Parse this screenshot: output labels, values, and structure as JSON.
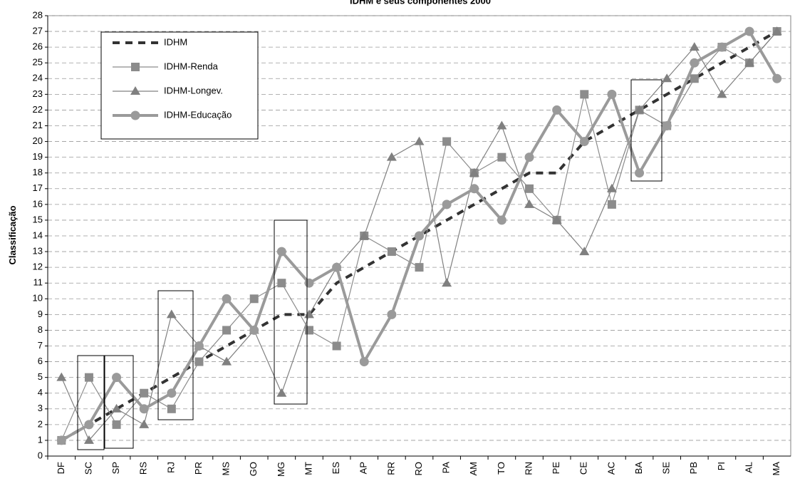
{
  "chart_data": {
    "type": "line",
    "title": "IDHM e seus componentes 2000",
    "y_label": "Classificação",
    "categories": [
      "DF",
      "SC",
      "SP",
      "RS",
      "RJ",
      "PR",
      "MS",
      "GO",
      "MG",
      "MT",
      "ES",
      "AP",
      "RR",
      "RO",
      "PA",
      "AM",
      "TO",
      "RN",
      "PE",
      "CE",
      "AC",
      "BA",
      "SE",
      "PB",
      "PI",
      "AL",
      "MA"
    ],
    "series": [
      {
        "name": "IDHM",
        "color": "#333333",
        "marker": "none",
        "dash": true,
        "values": [
          1,
          2,
          3,
          4,
          5,
          6,
          7,
          8,
          9,
          9,
          11,
          12,
          13,
          14,
          15,
          16,
          17,
          18,
          18,
          20,
          21,
          22,
          23,
          24,
          25,
          26,
          27
        ]
      },
      {
        "name": "IDHM-Renda",
        "color": "#8c8c8c",
        "marker": "square",
        "dash": false,
        "values": [
          1,
          5,
          2,
          4,
          3,
          6,
          8,
          10,
          11,
          8,
          7,
          14,
          13,
          12,
          20,
          18,
          19,
          17,
          15,
          23,
          16,
          22,
          21,
          24,
          26,
          25,
          27
        ]
      },
      {
        "name": "IDHM-Longev.",
        "color": "#808080",
        "marker": "triangle",
        "dash": false,
        "values": [
          5,
          1,
          3,
          2,
          9,
          7,
          6,
          8,
          4,
          9,
          12,
          14,
          19,
          20,
          11,
          18,
          21,
          16,
          15,
          13,
          17,
          22,
          24,
          26,
          23,
          25,
          27
        ]
      },
      {
        "name": "IDHM-Educação",
        "color": "#9a9a9a",
        "marker": "circle",
        "dash": false,
        "values": [
          1,
          2,
          5,
          3,
          4,
          7,
          10,
          8,
          13,
          11,
          12,
          6,
          9,
          14,
          16,
          17,
          15,
          19,
          22,
          20,
          23,
          18,
          21,
          25,
          26,
          27,
          24
        ]
      }
    ],
    "ylim": [
      0,
      28
    ],
    "yticks": [
      0,
      1,
      2,
      3,
      4,
      5,
      6,
      7,
      8,
      9,
      10,
      11,
      12,
      13,
      14,
      15,
      16,
      17,
      18,
      19,
      20,
      21,
      22,
      23,
      24,
      25,
      26,
      27,
      28
    ],
    "grid": true
  }
}
